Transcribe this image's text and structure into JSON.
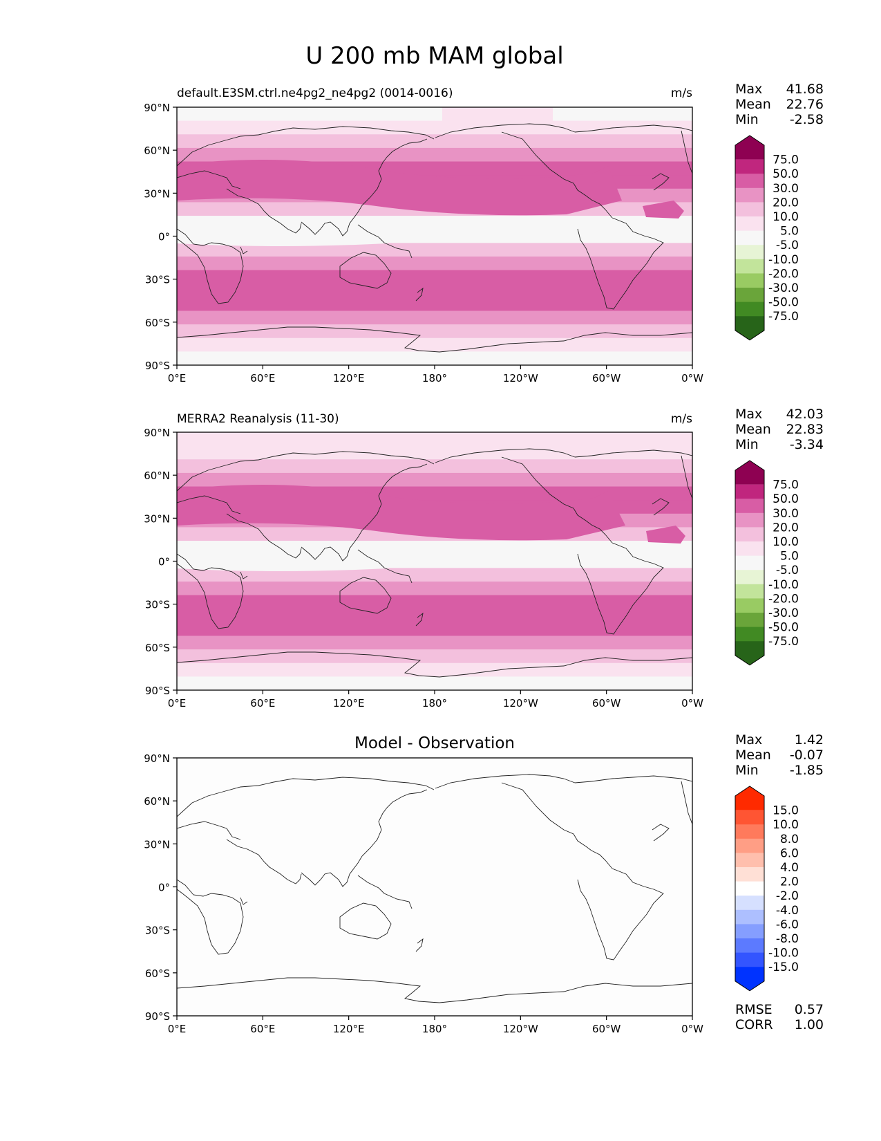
{
  "figure": {
    "title": "U 200 mb MAM global"
  },
  "chart_data": [
    {
      "type": "heatmap",
      "title": "default.E3SM.ctrl.ne4pg2_ne4pg2 (0014-0016)",
      "units": "m/s",
      "stats": [
        {
          "label": "Max",
          "value": "41.68"
        },
        {
          "label": "Mean",
          "value": "22.76"
        },
        {
          "label": "Min",
          "value": "-2.58"
        }
      ],
      "x_ticks": [
        "0°E",
        "60°E",
        "120°E",
        "180°",
        "120°W",
        "60°W",
        "0°W"
      ],
      "y_ticks": [
        "90°N",
        "60°N",
        "30°N",
        "0°",
        "30°S",
        "60°S",
        "90°S"
      ],
      "xlim": [
        0,
        360
      ],
      "ylim": [
        -90,
        90
      ],
      "colorbar_levels": [
        "75.0",
        "50.0",
        "30.0",
        "20.0",
        "10.0",
        "5.0",
        "-5.0",
        "-10.0",
        "-20.0",
        "-30.0",
        "-50.0",
        "-75.0"
      ],
      "colorbar_colors": [
        "#8e0152",
        "#c0267e",
        "#d85da5",
        "#e893c4",
        "#f3c0dd",
        "#fae2ef",
        "#f7f7f7",
        "#e7f4d5",
        "#c2e49b",
        "#99cb63",
        "#6aa53a",
        "#418a23",
        "#276419"
      ],
      "zonal_mean_band_colors_north_to_south": [
        "#f7f7f7",
        "#fae2ef",
        "#f3c0dd",
        "#e893c4",
        "#d85da5",
        "#d85da5",
        "#e893c4",
        "#f3c0dd",
        "#f7f7f7",
        "#f7f7f7",
        "#f3c0dd",
        "#e893c4",
        "#d85da5",
        "#d85da5",
        "#d85da5",
        "#e893c4",
        "#f3c0dd",
        "#fae2ef",
        "#f7f7f7"
      ]
    },
    {
      "type": "heatmap",
      "title": "MERRA2 Reanalysis (11-30)",
      "units": "m/s",
      "stats": [
        {
          "label": "Max",
          "value": "42.03"
        },
        {
          "label": "Mean",
          "value": "22.83"
        },
        {
          "label": "Min",
          "value": "-3.34"
        }
      ],
      "x_ticks": [
        "0°E",
        "60°E",
        "120°E",
        "180°",
        "120°W",
        "60°W",
        "0°W"
      ],
      "y_ticks": [
        "90°N",
        "60°N",
        "30°N",
        "0°",
        "30°S",
        "60°S",
        "90°S"
      ],
      "xlim": [
        0,
        360
      ],
      "ylim": [
        -90,
        90
      ],
      "colorbar_levels": [
        "75.0",
        "50.0",
        "30.0",
        "20.0",
        "10.0",
        "5.0",
        "-5.0",
        "-10.0",
        "-20.0",
        "-30.0",
        "-50.0",
        "-75.0"
      ],
      "colorbar_colors": [
        "#8e0152",
        "#c0267e",
        "#d85da5",
        "#e893c4",
        "#f3c0dd",
        "#fae2ef",
        "#f7f7f7",
        "#e7f4d5",
        "#c2e49b",
        "#99cb63",
        "#6aa53a",
        "#418a23",
        "#276419"
      ],
      "zonal_mean_band_colors_north_to_south": [
        "#fae2ef",
        "#fae2ef",
        "#f3c0dd",
        "#e893c4",
        "#d85da5",
        "#d85da5",
        "#e893c4",
        "#f3c0dd",
        "#f7f7f7",
        "#f7f7f7",
        "#f3c0dd",
        "#e893c4",
        "#d85da5",
        "#d85da5",
        "#d85da5",
        "#e893c4",
        "#f3c0dd",
        "#fae2ef",
        "#f7f7f7"
      ]
    },
    {
      "type": "heatmap",
      "title": "Model - Observation",
      "units": "",
      "stats": [
        {
          "label": "Max",
          "value": "1.42"
        },
        {
          "label": "Mean",
          "value": "-0.07"
        },
        {
          "label": "Min",
          "value": "-1.85"
        }
      ],
      "x_ticks": [
        "0°E",
        "60°E",
        "120°E",
        "180°",
        "120°W",
        "60°W",
        "0°W"
      ],
      "y_ticks": [
        "90°N",
        "60°N",
        "30°N",
        "0°",
        "30°S",
        "60°S",
        "90°S"
      ],
      "xlim": [
        0,
        360
      ],
      "ylim": [
        -90,
        90
      ],
      "colorbar_levels": [
        "15.0",
        "10.0",
        "8.0",
        "6.0",
        "4.0",
        "2.0",
        "-2.0",
        "-4.0",
        "-6.0",
        "-8.0",
        "-10.0",
        "-15.0"
      ],
      "colorbar_colors": [
        "#ff2a00",
        "#ff5533",
        "#ff7a5c",
        "#ff9e85",
        "#ffbfad",
        "#ffe0d6",
        "#ffffff",
        "#d6e0ff",
        "#adbfff",
        "#859eff",
        "#5c7aff",
        "#3355ff",
        "#0033ff"
      ],
      "zonal_mean_band_colors_north_to_south": [
        "#fdfdfd"
      ],
      "extra_stats": [
        {
          "label": "RMSE",
          "value": "0.57"
        },
        {
          "label": "CORR",
          "value": "1.00"
        }
      ]
    }
  ]
}
